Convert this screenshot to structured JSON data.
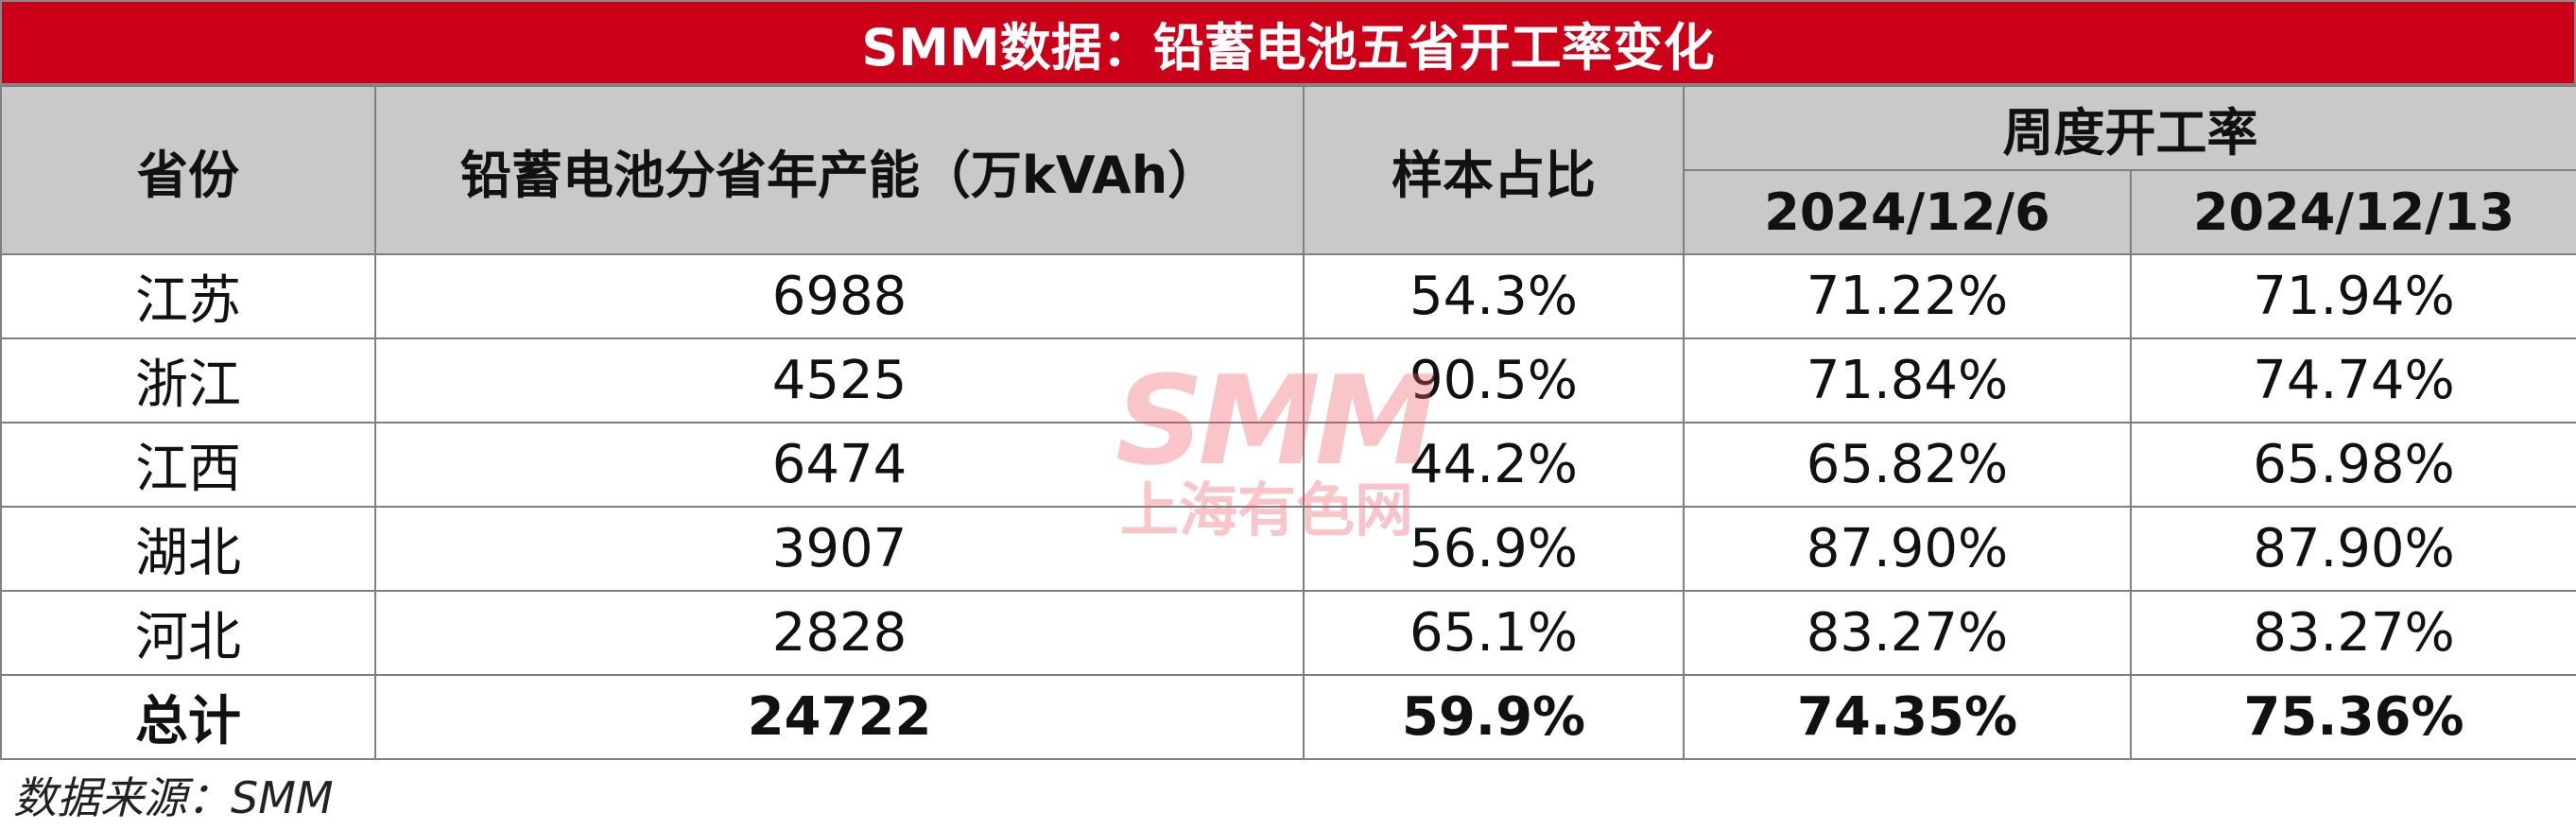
{
  "title": "SMM数据：铅蓄电池五省开工率变化",
  "table": {
    "header": {
      "province": "省份",
      "capacity": "铅蓄电池分省年产能（万kVAh）",
      "sample": "样本占比",
      "weekly": "周度开工率",
      "dates": [
        "2024/12/6",
        "2024/12/13"
      ]
    },
    "rows": [
      [
        "江苏",
        "6988",
        "54.3%",
        "71.22%",
        "71.94%"
      ],
      [
        "浙江",
        "4525",
        "90.5%",
        "71.84%",
        "74.74%"
      ],
      [
        "江西",
        "6474",
        "44.2%",
        "65.82%",
        "65.98%"
      ],
      [
        "湖北",
        "3907",
        "56.9%",
        "87.90%",
        "87.90%"
      ],
      [
        "河北",
        "2828",
        "65.1%",
        "83.27%",
        "83.27%"
      ]
    ],
    "total": [
      "总计",
      "24722",
      "59.9%",
      "74.35%",
      "75.36%"
    ]
  },
  "source": "数据来源：SMM",
  "watermark": {
    "logo": "SMM",
    "name": "上海有色网"
  }
}
